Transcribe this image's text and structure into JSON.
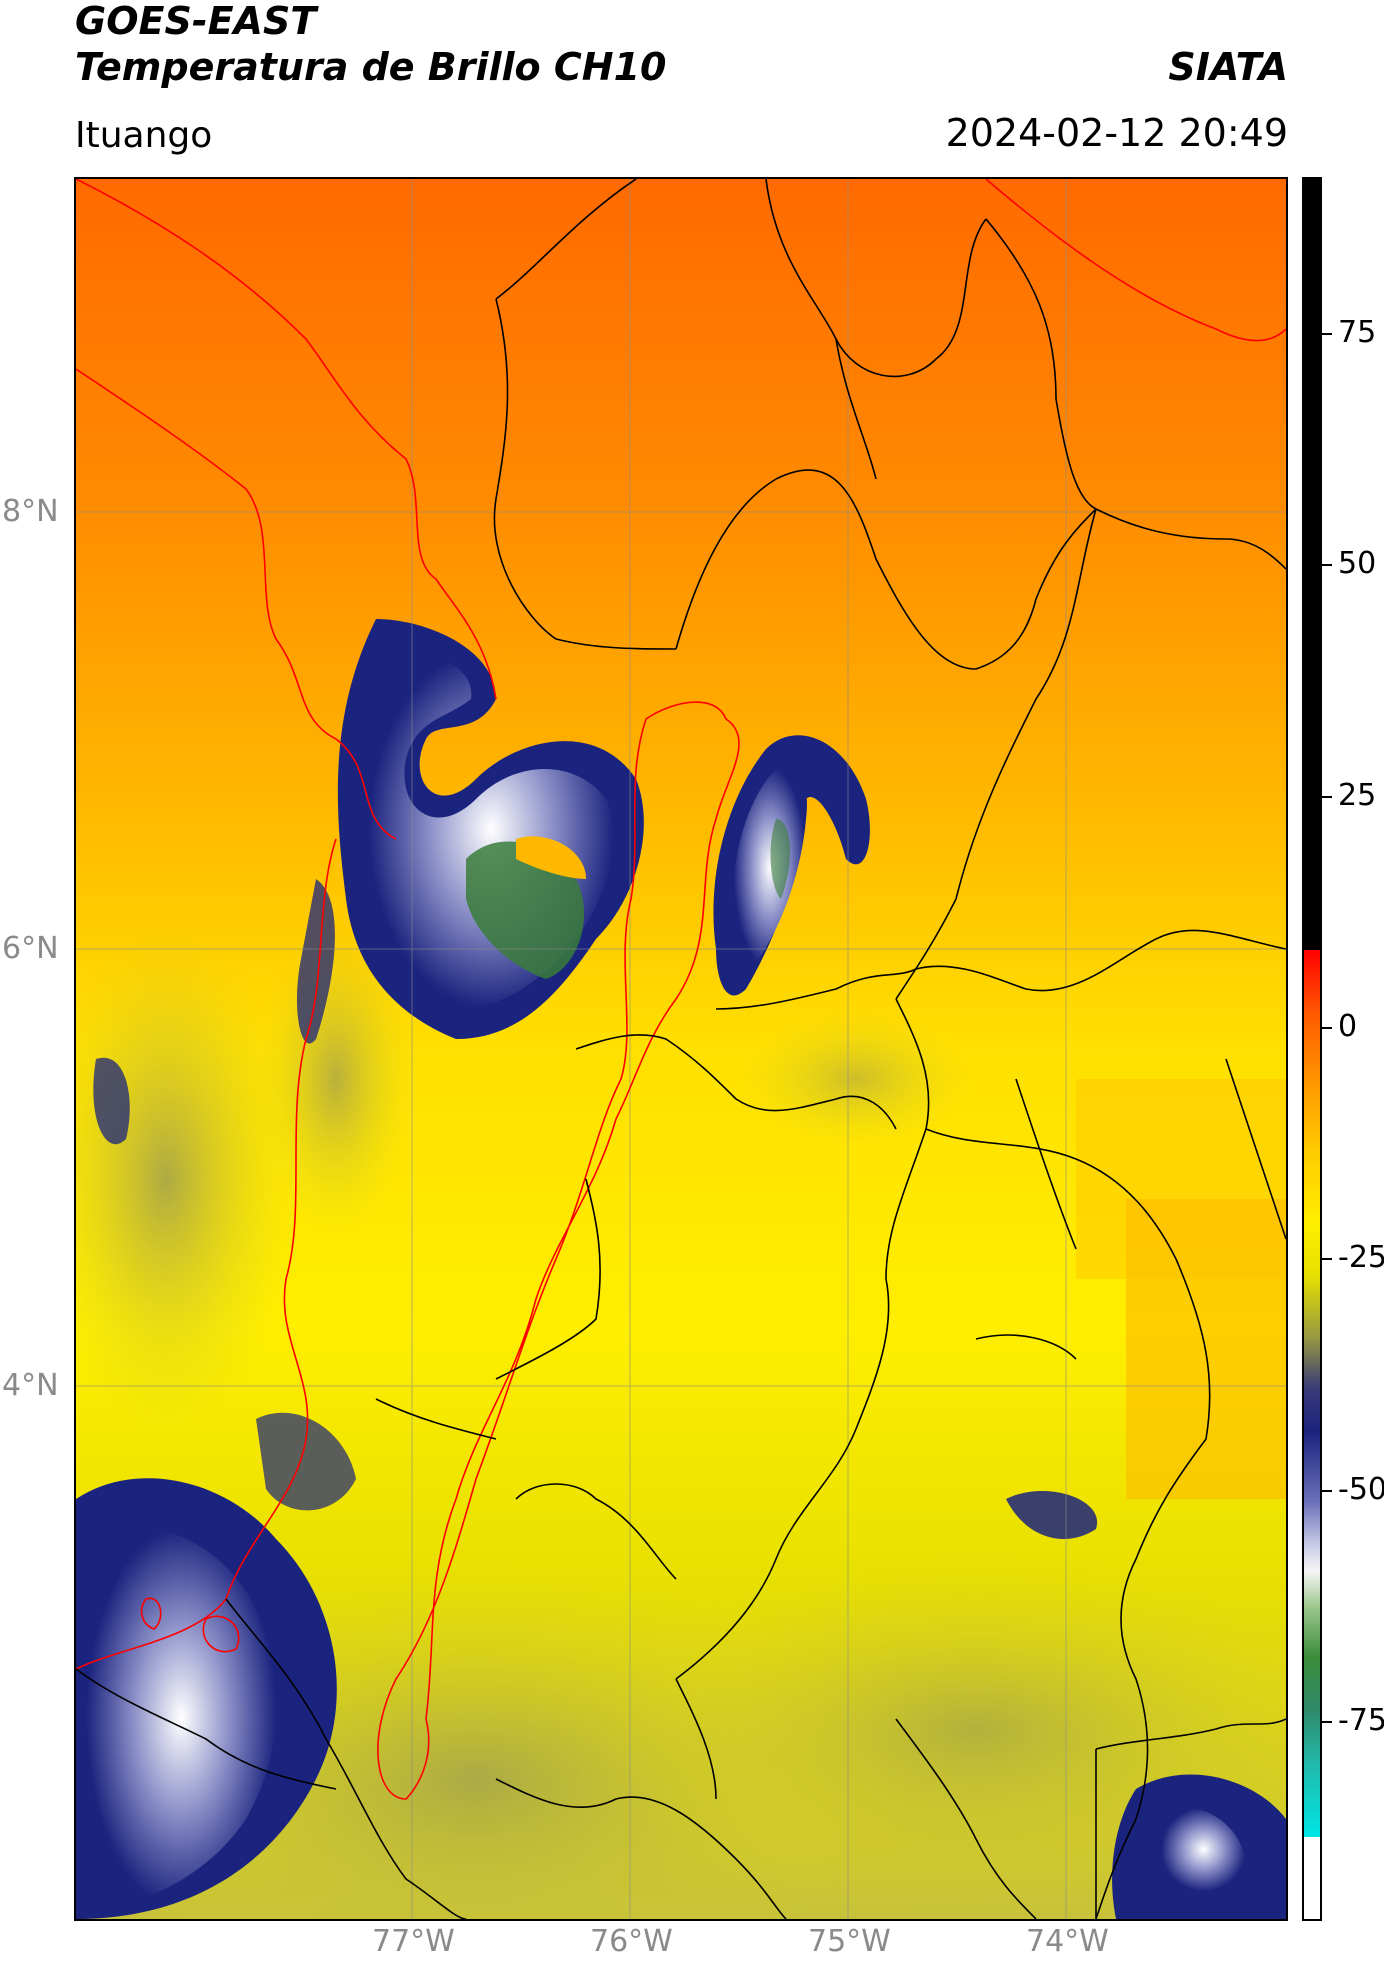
{
  "header": {
    "satellite": "GOES-EAST",
    "product": "Temperatura de Brillo CH10",
    "brand": "SIATA",
    "location": "Ituango",
    "datetime": "2024-02-12 20:49"
  },
  "map": {
    "lat_labels": [
      "8°N",
      "6°N",
      "4°N"
    ],
    "lon_labels": [
      "77°W",
      "76°W",
      "75°W",
      "74°W"
    ]
  },
  "colorbar": {
    "ticks": [
      "75",
      "50",
      "25",
      "0",
      "-25",
      "-50",
      "-75"
    ]
  },
  "colors": {
    "warm": "#ff7000",
    "mid": "#ffe800",
    "cold": "#1a237e",
    "coldest": "#3a7d3a",
    "borders": "#000000",
    "region_outline": "#ff0000"
  }
}
